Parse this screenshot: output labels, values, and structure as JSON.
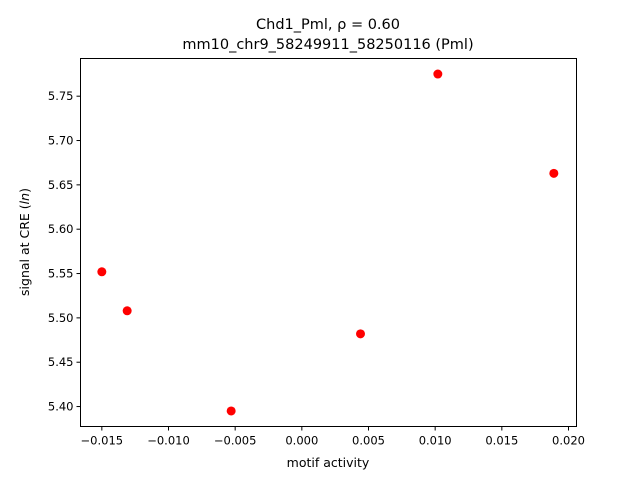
{
  "chart_data": {
    "type": "scatter",
    "title_line1": "Chd1_Pml, ρ = 0.60",
    "title_line2": "mm10_chr9_58249911_58250116 (Pml)",
    "xlabel": "motif activity",
    "ylabel": "signal at CRE (ln)",
    "ylabel_prefix": "signal at CRE (",
    "ylabel_italic": "ln",
    "ylabel_suffix": ")",
    "xlim": [
      -0.0166,
      0.0206
    ],
    "ylim": [
      5.3775,
      5.7925
    ],
    "xticks": [
      -0.015,
      -0.01,
      -0.005,
      0.0,
      0.005,
      0.01,
      0.015,
      0.02
    ],
    "xtick_labels": [
      "−0.015",
      "−0.010",
      "−0.005",
      "0.000",
      "0.005",
      "0.010",
      "0.015",
      "0.020"
    ],
    "yticks": [
      5.4,
      5.45,
      5.5,
      5.55,
      5.6,
      5.65,
      5.7,
      5.75
    ],
    "ytick_labels": [
      "5.40",
      "5.45",
      "5.50",
      "5.55",
      "5.60",
      "5.65",
      "5.70",
      "5.75"
    ],
    "grid": false,
    "marker_color": "#ff0000",
    "series": [
      {
        "x": [
          -0.015,
          -0.0131,
          -0.0053,
          0.0044,
          0.0102,
          0.0189
        ],
        "y": [
          5.552,
          5.508,
          5.395,
          5.482,
          5.775,
          5.663
        ]
      }
    ]
  }
}
